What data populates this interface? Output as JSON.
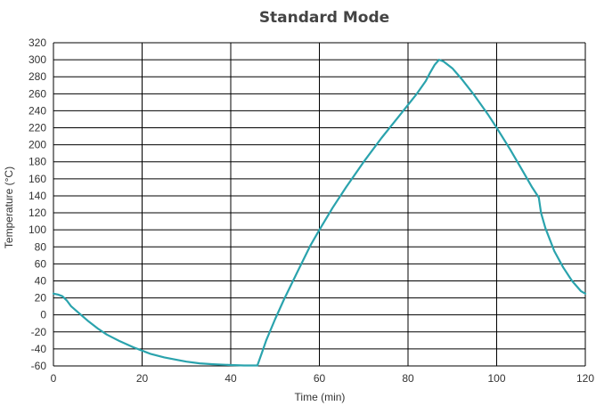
{
  "chart_data": {
    "type": "line",
    "title": "Standard Mode",
    "xlabel": "Time (min)",
    "ylabel": "Temperature (°C)",
    "xlim": [
      0,
      120
    ],
    "ylim": [
      -60,
      320
    ],
    "xticks": [
      0,
      20,
      40,
      60,
      80,
      100,
      120
    ],
    "yticks": [
      320,
      300,
      280,
      260,
      240,
      220,
      200,
      180,
      160,
      140,
      120,
      100,
      80,
      60,
      40,
      20,
      0,
      -20,
      -40,
      -60
    ],
    "grid": true,
    "line_color": "#2aa3ad",
    "series": [
      {
        "x": [
          0,
          1,
          2,
          3,
          4,
          6,
          8,
          10,
          12,
          15,
          18,
          20,
          22,
          25,
          28,
          30,
          33,
          36,
          40,
          43,
          45,
          46,
          47,
          48,
          50,
          52,
          55,
          58,
          60,
          63,
          66,
          70,
          74,
          78,
          82,
          84,
          85,
          86,
          87,
          88,
          90,
          92,
          95,
          98,
          100,
          103,
          106,
          108,
          109.5,
          110,
          111,
          113,
          115,
          117,
          119,
          120
        ],
        "y": [
          25,
          24,
          22,
          17,
          10,
          1,
          -8,
          -16,
          -23,
          -31,
          -38,
          -42,
          -46,
          -50,
          -53,
          -55,
          -57,
          -58,
          -59,
          -59.5,
          -59.5,
          -59.5,
          -45,
          -30,
          -5,
          18,
          50,
          82,
          100,
          126,
          150,
          180,
          208,
          234,
          260,
          275,
          285,
          294,
          300,
          298,
          290,
          278,
          258,
          236,
          220,
          195,
          168,
          150,
          138,
          120,
          102,
          75,
          56,
          40,
          28,
          25
        ]
      }
    ]
  }
}
